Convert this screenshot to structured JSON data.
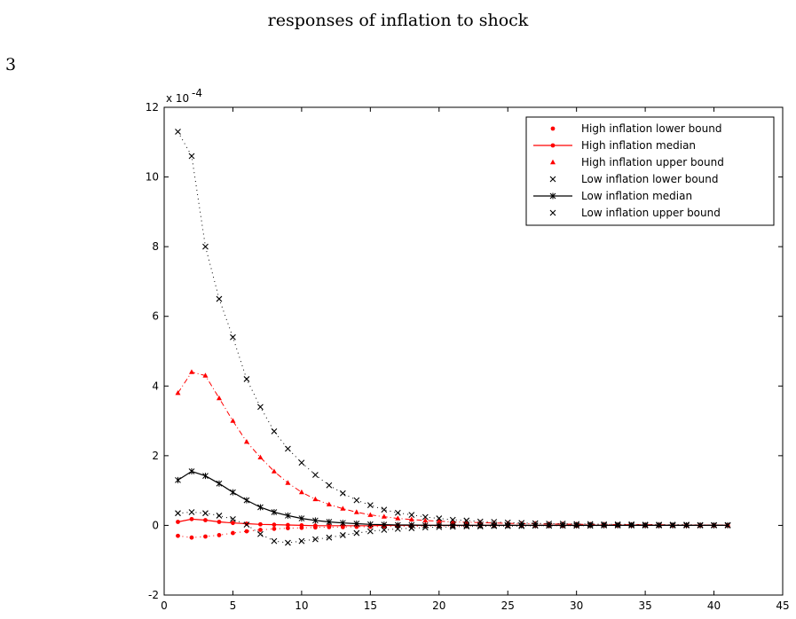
{
  "page": {
    "title": "responses of inflation to shock",
    "number": "3"
  },
  "chart_data": {
    "type": "line",
    "title": "",
    "xlabel": "",
    "ylabel": "",
    "exponent_label": "x 10",
    "exponent_power": "-4",
    "xlim": [
      0,
      45
    ],
    "ylim": [
      -2,
      12
    ],
    "xticks": [
      "0",
      "5",
      "10",
      "15",
      "20",
      "25",
      "30",
      "35",
      "40",
      "45"
    ],
    "yticks": [
      "-2",
      "0",
      "2",
      "4",
      "6",
      "8",
      "10",
      "12"
    ],
    "legend_position": "top-right",
    "x": [
      1,
      2,
      3,
      4,
      5,
      6,
      7,
      8,
      9,
      10,
      11,
      12,
      13,
      14,
      15,
      16,
      17,
      18,
      19,
      20,
      21,
      22,
      23,
      24,
      25,
      26,
      27,
      28,
      29,
      30,
      31,
      32,
      33,
      34,
      35,
      36,
      37,
      38,
      39,
      40,
      41
    ],
    "series": [
      {
        "name": "High inflation lower bound",
        "color": "#ff0000",
        "style": "dotted",
        "marker": "dot",
        "values": [
          -0.3,
          -0.35,
          -0.32,
          -0.28,
          -0.22,
          -0.17,
          -0.13,
          -0.1,
          -0.08,
          -0.07,
          -0.06,
          -0.05,
          -0.05,
          -0.04,
          -0.04,
          -0.03,
          -0.03,
          -0.03,
          -0.02,
          -0.02,
          -0.02,
          -0.02,
          -0.01,
          -0.01,
          -0.01,
          -0.01,
          -0.01,
          -0.01,
          -0.01,
          -0.01,
          0,
          0,
          0,
          0,
          0,
          0,
          0,
          0,
          0,
          0,
          0
        ]
      },
      {
        "name": "High inflation median",
        "color": "#ff0000",
        "style": "solid",
        "marker": "dot",
        "values": [
          0.1,
          0.18,
          0.15,
          0.1,
          0.07,
          0.05,
          0.03,
          0.02,
          0.01,
          0,
          -0.01,
          -0.01,
          -0.01,
          -0.01,
          -0.01,
          0,
          0,
          0,
          0,
          0,
          0,
          0,
          0,
          0,
          0,
          0,
          0,
          0,
          0,
          0,
          0,
          0,
          0,
          0,
          0,
          0,
          0,
          0,
          0,
          0,
          0
        ]
      },
      {
        "name": "High inflation upper bound",
        "color": "#ff0000",
        "style": "dashdot",
        "marker": "triangle",
        "values": [
          3.8,
          4.4,
          4.3,
          3.65,
          3.0,
          2.4,
          1.95,
          1.55,
          1.22,
          0.95,
          0.75,
          0.6,
          0.48,
          0.38,
          0.3,
          0.25,
          0.2,
          0.17,
          0.14,
          0.12,
          0.1,
          0.09,
          0.08,
          0.07,
          0.06,
          0.05,
          0.05,
          0.04,
          0.04,
          0.03,
          0.03,
          0.03,
          0.02,
          0.02,
          0.02,
          0.02,
          0.01,
          0.01,
          0.01,
          0.01,
          0.01
        ]
      },
      {
        "name": "Low inflation lower bound",
        "color": "#000000",
        "style": "dotted",
        "marker": "x",
        "values": [
          0.35,
          0.38,
          0.35,
          0.28,
          0.18,
          0.02,
          -0.25,
          -0.45,
          -0.5,
          -0.45,
          -0.4,
          -0.35,
          -0.28,
          -0.22,
          -0.17,
          -0.13,
          -0.1,
          -0.08,
          -0.06,
          -0.05,
          -0.04,
          -0.03,
          -0.03,
          -0.02,
          -0.02,
          -0.02,
          -0.01,
          -0.01,
          -0.01,
          -0.01,
          -0.01,
          0,
          0,
          0,
          0,
          0,
          0,
          0,
          0,
          0,
          0
        ]
      },
      {
        "name": "Low inflation median",
        "color": "#000000",
        "style": "solid",
        "marker": "star",
        "values": [
          1.3,
          1.55,
          1.42,
          1.2,
          0.95,
          0.72,
          0.52,
          0.38,
          0.28,
          0.2,
          0.14,
          0.1,
          0.07,
          0.05,
          0.03,
          0.02,
          0.01,
          0.01,
          0,
          0,
          0,
          0,
          0,
          0,
          0,
          0,
          0,
          0,
          0,
          0,
          0,
          0,
          0,
          0,
          0,
          0,
          0,
          0,
          0,
          0,
          0
        ]
      },
      {
        "name": "Low inflation upper bound",
        "color": "#000000",
        "style": "dotted",
        "marker": "x",
        "values": [
          11.3,
          10.6,
          8.0,
          6.5,
          5.4,
          4.2,
          3.4,
          2.7,
          2.2,
          1.8,
          1.45,
          1.15,
          0.92,
          0.72,
          0.58,
          0.45,
          0.36,
          0.3,
          0.24,
          0.2,
          0.16,
          0.14,
          0.11,
          0.1,
          0.08,
          0.07,
          0.06,
          0.05,
          0.05,
          0.04,
          0.04,
          0.03,
          0.03,
          0.03,
          0.02,
          0.02,
          0.02,
          0.02,
          0.01,
          0.01,
          0.01
        ]
      }
    ]
  }
}
